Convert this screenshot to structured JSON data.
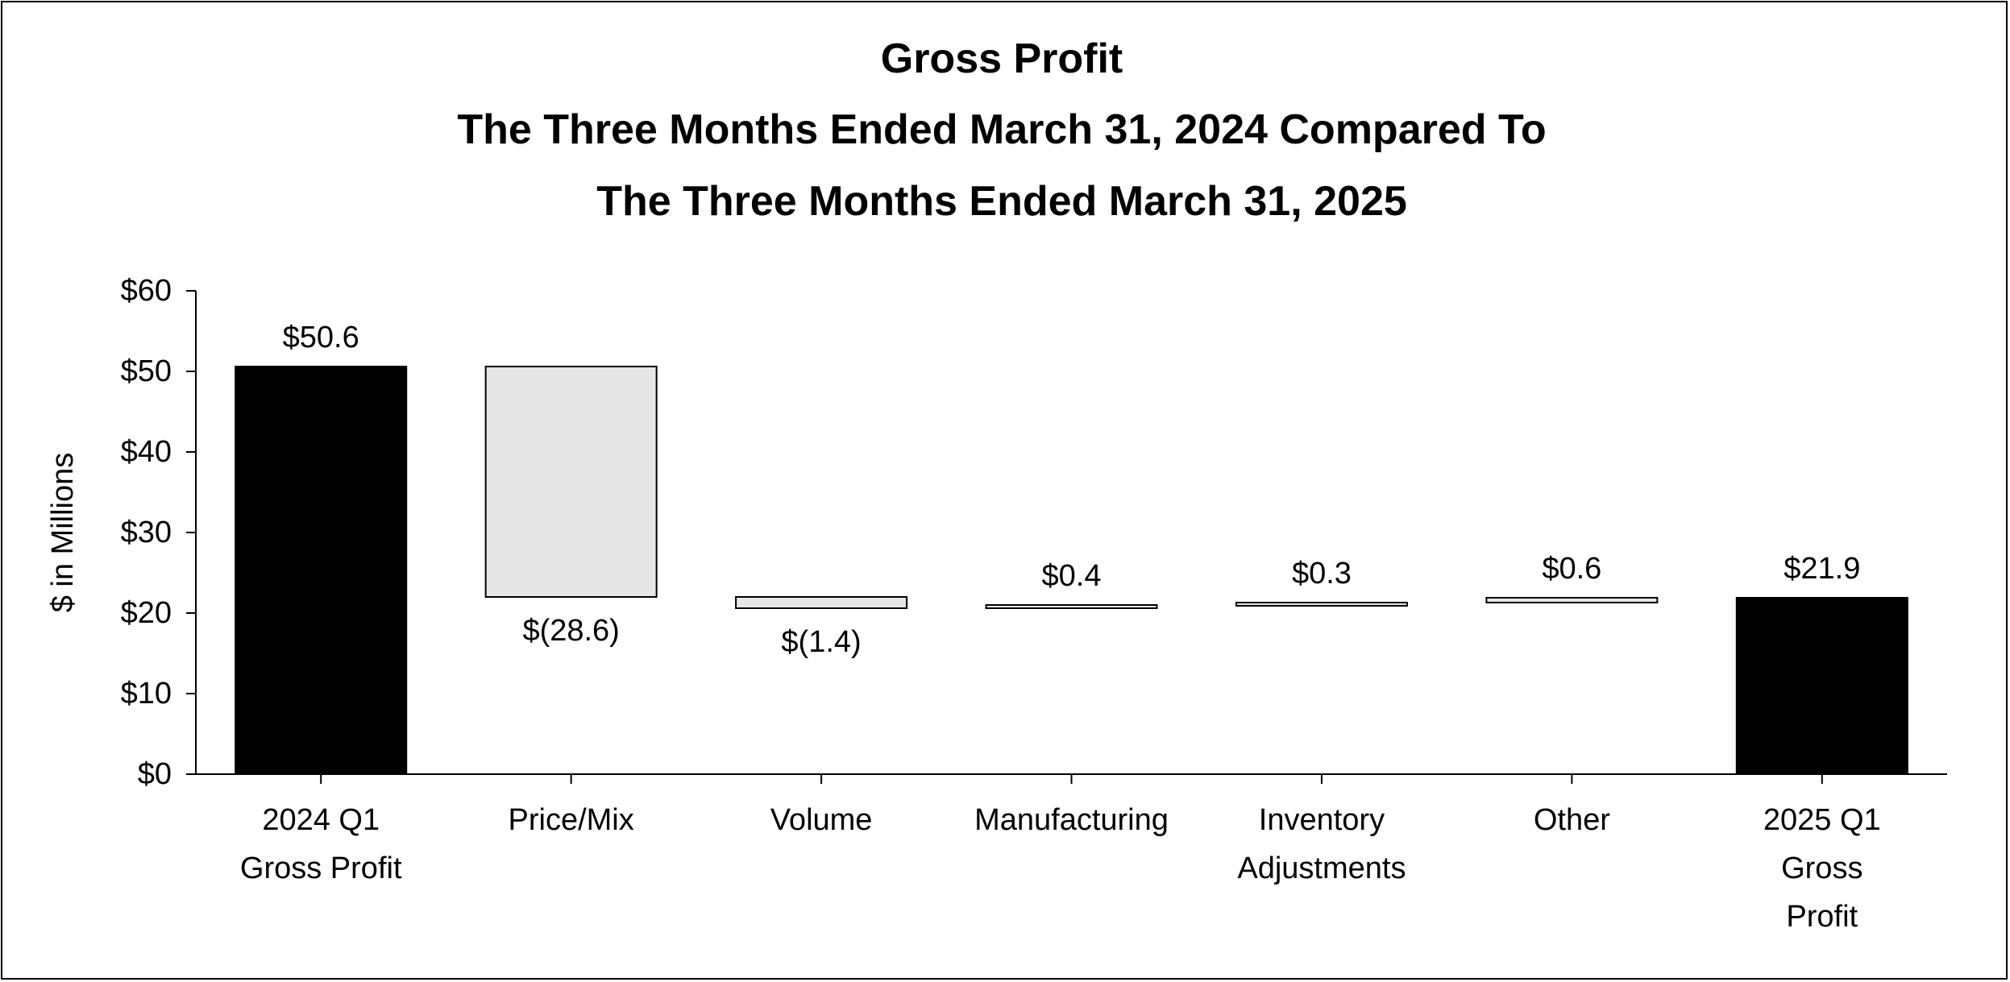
{
  "chart_data": {
    "type": "bar",
    "subtype": "waterfall",
    "title_lines": [
      "Gross Profit",
      "The Three Months Ended March 31, 2024 Compared To",
      "The Three Months Ended March 31, 2025"
    ],
    "ylabel": "$ in Millions",
    "xlabel": "",
    "ylim": [
      0,
      60
    ],
    "yticks": [
      0,
      10,
      20,
      30,
      40,
      50,
      60
    ],
    "ytick_labels": [
      "$0",
      "$10",
      "$20",
      "$30",
      "$40",
      "$50",
      "$60"
    ],
    "grid": false,
    "legend": "none",
    "categories": [
      [
        "2024 Q1",
        "Gross Profit"
      ],
      [
        "Price/Mix"
      ],
      [
        "Volume"
      ],
      [
        "Manufacturing"
      ],
      [
        "Inventory",
        "Adjustments"
      ],
      [
        "Other"
      ],
      [
        "2025 Q1",
        "Gross",
        "Profit"
      ]
    ],
    "bars": [
      {
        "kind": "total",
        "start": 0,
        "end": 50.6,
        "label": "$50.6"
      },
      {
        "kind": "delta",
        "start": 50.6,
        "end": 22.0,
        "label": "$(28.6)"
      },
      {
        "kind": "delta",
        "start": 22.0,
        "end": 20.6,
        "label": "$(1.4)"
      },
      {
        "kind": "delta",
        "start": 20.6,
        "end": 21.0,
        "label": "$0.4"
      },
      {
        "kind": "delta",
        "start": 21.0,
        "end": 21.3,
        "label": "$0.3"
      },
      {
        "kind": "delta",
        "start": 21.3,
        "end": 21.9,
        "label": "$0.6"
      },
      {
        "kind": "total",
        "start": 0,
        "end": 21.9,
        "label": "$21.9"
      }
    ],
    "colors": {
      "total": "#000000",
      "delta": "#e6e6e6",
      "edge": "#000000"
    }
  }
}
